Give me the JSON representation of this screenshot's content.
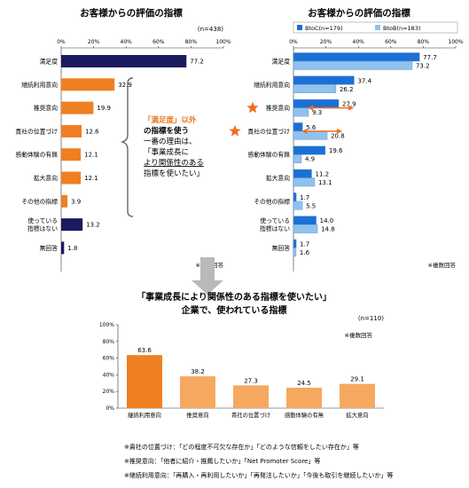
{
  "colors": {
    "navy": "#1a1a5e",
    "orange": "#f07f23",
    "light_orange": "#f6a860",
    "btoc_blue": "#1c6fd6",
    "btob_blue": "#8fc2ee",
    "star": "#f26c21",
    "callout_text": "#e8761e"
  },
  "callout": {
    "line1": "「満足度」以外",
    "line2": "の指標を使う",
    "line3": "一番の理由は、",
    "line4": "「事業成長に",
    "line5": "より関係性のある",
    "line6": "指標を使いたい」"
  },
  "banner": {
    "line1": "「事業成長により関係性のある指標を使いたい」",
    "line2": "企業で、使われている指標"
  },
  "footnotes": [
    "※貴社の位置づけ：「どの程度不可欠な存在か」「どのような信頼をしたい存在か」等",
    "※推奨意向：「他者に紹介・推薦したいか」「Net Promoter Score」等",
    "※継続利用意向：「再購入・再利用したいか」「再発注したいか」「今後も取引を継続したいか」等"
  ],
  "chart_data": [
    {
      "type": "bar",
      "orientation": "horizontal",
      "title": "お客様からの評価の指標",
      "n_label": "(n=438)",
      "note": "※複数回答",
      "xlim": [
        0,
        100
      ],
      "ticks": [
        "0%",
        "20%",
        "40%",
        "60%",
        "80%",
        "100%"
      ],
      "categories": [
        "満足度",
        "継続利用意向",
        "推奨意向",
        "貴社の位置づけ",
        "感動体験の有無",
        "拡大意向",
        "その他の指標",
        "使っている指標はない",
        "無回答"
      ],
      "category_lines": [
        [
          "満足度"
        ],
        [
          "継続利用意向"
        ],
        [
          "推奨意向"
        ],
        [
          "貴社の位置づけ"
        ],
        [
          "感動体験の有無"
        ],
        [
          "拡大意向"
        ],
        [
          "その他の指標"
        ],
        [
          "使っている",
          "指標はない"
        ],
        [
          "無回答"
        ]
      ],
      "values": [
        77.2,
        32.9,
        19.9,
        12.6,
        12.1,
        12.1,
        3.9,
        13.2,
        1.8
      ],
      "bar_colors": [
        "navy",
        "orange",
        "orange",
        "orange",
        "orange",
        "orange",
        "orange",
        "navy",
        "navy"
      ]
    },
    {
      "type": "bar",
      "orientation": "horizontal",
      "title": "お客様からの評価の指標",
      "note": "※複数回答",
      "xlim": [
        0,
        100
      ],
      "ticks": [
        "0%",
        "20%",
        "40%",
        "60%",
        "80%",
        "100%"
      ],
      "categories": [
        "満足度",
        "継続利用意向",
        "推奨意向",
        "貴社の位置づけ",
        "感動体験の有無",
        "拡大意向",
        "その他の指標",
        "使っている指標はない",
        "無回答"
      ],
      "category_lines": [
        [
          "満足度"
        ],
        [
          "継続利用意向"
        ],
        [
          "推奨意向"
        ],
        [
          "貴社の位置づけ"
        ],
        [
          "感動体験の有無"
        ],
        [
          "拡大意向"
        ],
        [
          "その他の指標"
        ],
        [
          "使っている",
          "指標はない"
        ],
        [
          "無回答"
        ]
      ],
      "series": [
        {
          "name": "BtoC(n=179)",
          "values": [
            77.7,
            37.4,
            27.9,
            5.6,
            19.6,
            11.2,
            1.7,
            14.0,
            1.7
          ]
        },
        {
          "name": "BtoB(n=183)",
          "values": [
            73.2,
            26.2,
            9.3,
            20.8,
            4.9,
            13.1,
            5.5,
            14.8,
            1.6
          ]
        }
      ],
      "starred": [
        "推奨意向",
        "貴社の位置づけ"
      ]
    },
    {
      "type": "bar",
      "orientation": "vertical",
      "n_label": "(n=110)",
      "note": "※複数回答",
      "ylim": [
        0,
        100
      ],
      "ticks": [
        "0%",
        "20%",
        "40%",
        "60%",
        "80%",
        "100%"
      ],
      "categories": [
        "継続利用意向",
        "推奨意向",
        "貴社の位置づけ",
        "感動体験の有無",
        "拡大意向"
      ],
      "values": [
        63.6,
        38.2,
        27.3,
        24.5,
        29.1
      ],
      "bar_colors": [
        "orange",
        "light_orange",
        "light_orange",
        "light_orange",
        "light_orange"
      ]
    }
  ]
}
